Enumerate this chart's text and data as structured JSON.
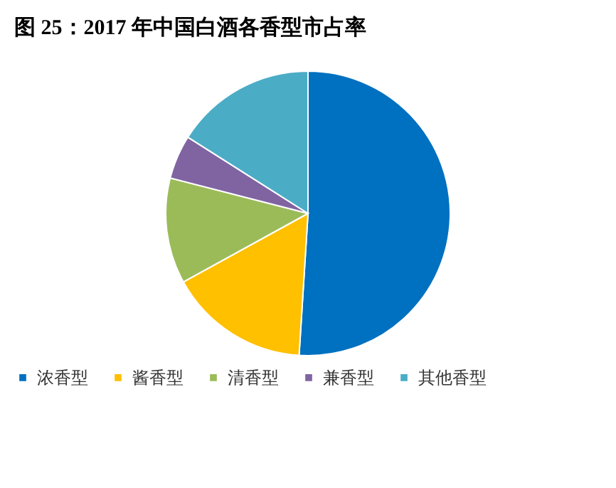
{
  "chart_data": {
    "type": "pie",
    "title": "图 25：2017 年中国白酒各香型市占率",
    "categories": [
      "浓香型",
      "酱香型",
      "清香型",
      "兼香型",
      "其他香型"
    ],
    "values": [
      51,
      16,
      12,
      5,
      16
    ],
    "colors": [
      "#0070c0",
      "#ffc000",
      "#9bbb59",
      "#8064a2",
      "#4bacc6"
    ],
    "legend": "bottom"
  }
}
